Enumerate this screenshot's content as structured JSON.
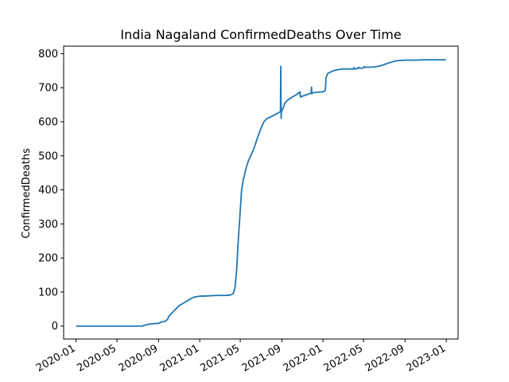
{
  "chart_data": {
    "type": "line",
    "title": "India Nagaland ConfirmedDeaths Over Time",
    "xlabel": "",
    "ylabel": "ConfirmedDeaths",
    "xlim": [
      "2019-11-25",
      "2023-02-05"
    ],
    "ylim": [
      -38,
      822
    ],
    "grid": false,
    "line_color": "#1f77b4",
    "x_ticks": [
      "2020-01",
      "2020-05",
      "2020-09",
      "2021-01",
      "2021-05",
      "2021-09",
      "2022-01",
      "2022-05",
      "2022-09",
      "2023-01"
    ],
    "y_ticks": [
      0,
      100,
      200,
      300,
      400,
      500,
      600,
      700,
      800
    ],
    "series": [
      {
        "x": [
          "2020-01-01",
          "2020-03-01",
          "2020-05-01",
          "2020-06-01",
          "2020-07-01",
          "2020-07-15",
          "2020-07-20",
          "2020-08-01",
          "2020-08-15",
          "2020-09-01",
          "2020-09-10",
          "2020-09-20",
          "2020-09-28",
          "2020-10-01",
          "2020-10-10",
          "2020-10-20",
          "2020-11-01",
          "2020-11-15",
          "2020-12-01",
          "2020-12-15",
          "2021-01-01",
          "2021-01-15",
          "2021-02-01",
          "2021-02-15",
          "2021-03-01",
          "2021-03-15",
          "2021-04-01",
          "2021-04-10",
          "2021-04-15",
          "2021-04-20",
          "2021-04-25",
          "2021-05-01",
          "2021-05-05",
          "2021-05-10",
          "2021-05-15",
          "2021-05-20",
          "2021-05-25",
          "2021-06-01",
          "2021-06-10",
          "2021-06-20",
          "2021-07-01",
          "2021-07-10",
          "2021-07-20",
          "2021-07-25",
          "2021-08-01",
          "2021-08-10",
          "2021-08-20",
          "2021-08-28",
          "2021-08-29",
          "2021-08-30",
          "2021-08-31",
          "2021-09-05",
          "2021-09-10",
          "2021-09-20",
          "2021-10-01",
          "2021-10-15",
          "2021-10-25",
          "2021-10-26",
          "2021-10-27",
          "2021-11-01",
          "2021-11-15",
          "2021-11-27",
          "2021-11-28",
          "2021-11-29",
          "2021-12-01",
          "2021-12-15",
          "2022-01-01",
          "2022-01-08",
          "2022-01-10",
          "2022-01-15",
          "2022-02-01",
          "2022-02-15",
          "2022-03-01",
          "2022-03-15",
          "2022-04-01",
          "2022-04-03",
          "2022-04-05",
          "2022-04-15",
          "2022-04-17",
          "2022-04-20",
          "2022-05-01",
          "2022-05-03",
          "2022-05-05",
          "2022-05-15",
          "2022-06-01",
          "2022-06-15",
          "2022-07-01",
          "2022-07-15",
          "2022-08-01",
          "2022-08-15",
          "2022-09-01",
          "2022-10-01",
          "2022-11-01",
          "2022-12-01",
          "2022-12-31"
        ],
        "y": [
          0,
          0,
          0,
          0,
          0,
          0,
          2,
          5,
          7,
          8,
          12,
          14,
          20,
          28,
          38,
          48,
          60,
          68,
          78,
          85,
          88,
          88,
          89,
          90,
          90,
          90,
          91,
          95,
          110,
          160,
          250,
          340,
          400,
          430,
          450,
          470,
          485,
          500,
          520,
          550,
          580,
          600,
          610,
          612,
          615,
          620,
          625,
          630,
          763,
          610,
          630,
          640,
          655,
          665,
          672,
          680,
          688,
          675,
          672,
          675,
          680,
          684,
          702,
          682,
          685,
          687,
          688,
          692,
          730,
          742,
          750,
          753,
          755,
          755,
          755,
          759,
          755,
          757,
          760,
          757,
          758,
          762,
          760,
          760,
          761,
          763,
          768,
          773,
          778,
          780,
          781,
          781,
          782,
          782,
          782
        ]
      }
    ]
  }
}
